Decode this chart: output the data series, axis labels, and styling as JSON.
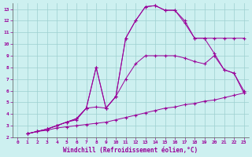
{
  "xlabel": "Windchill (Refroidissement éolien,°C)",
  "bg_color": "#cdf0f0",
  "line_color": "#990099",
  "grid_color": "#9dcfcf",
  "xlim": [
    -0.5,
    23.5
  ],
  "ylim": [
    2,
    13.5
  ],
  "xticks": [
    0,
    1,
    2,
    3,
    4,
    5,
    6,
    7,
    8,
    9,
    10,
    11,
    12,
    13,
    14,
    15,
    16,
    17,
    18,
    19,
    20,
    21,
    22,
    23
  ],
  "yticks": [
    2,
    3,
    4,
    5,
    6,
    7,
    8,
    9,
    10,
    11,
    12,
    13
  ],
  "c1x": [
    1,
    2,
    3,
    4,
    5,
    6,
    7,
    8,
    9,
    10,
    11,
    12,
    13,
    14,
    15,
    16,
    17,
    18,
    19,
    20,
    21,
    22,
    23
  ],
  "c1y": [
    2.3,
    2.5,
    2.6,
    2.8,
    2.9,
    3.0,
    3.1,
    3.2,
    3.3,
    3.5,
    3.7,
    3.9,
    4.1,
    4.3,
    4.5,
    4.6,
    4.8,
    4.9,
    5.1,
    5.2,
    5.4,
    5.6,
    5.8
  ],
  "c2x": [
    1,
    2,
    3,
    4,
    5,
    6,
    7,
    8,
    9,
    10,
    11,
    12,
    13,
    14,
    15,
    16,
    17,
    18,
    19,
    20,
    21,
    22,
    23
  ],
  "c2y": [
    2.3,
    2.5,
    2.7,
    3.0,
    3.3,
    3.5,
    4.5,
    4.6,
    4.5,
    5.5,
    7.0,
    8.3,
    9.0,
    9.0,
    9.0,
    9.0,
    8.8,
    8.5,
    8.3,
    9.0,
    7.8,
    7.5,
    5.8
  ],
  "c3x": [
    1,
    2,
    3,
    4,
    5,
    6,
    7,
    8,
    9,
    10,
    11,
    12,
    13,
    14,
    15,
    16,
    17,
    18,
    19,
    20,
    21,
    22,
    23
  ],
  "c3y": [
    2.3,
    2.5,
    2.7,
    3.0,
    3.3,
    3.6,
    4.5,
    8.0,
    4.5,
    5.5,
    10.5,
    12.0,
    13.2,
    13.3,
    12.9,
    12.9,
    12.0,
    10.5,
    10.5,
    10.5,
    10.5,
    10.5,
    10.5
  ],
  "c4x": [
    1,
    2,
    3,
    4,
    5,
    6,
    7,
    8,
    9,
    10,
    11,
    12,
    13,
    14,
    15,
    16,
    17,
    18,
    19,
    20,
    21,
    22,
    23
  ],
  "c4y": [
    2.3,
    2.5,
    2.7,
    3.0,
    3.3,
    3.6,
    4.5,
    8.0,
    4.5,
    5.5,
    10.5,
    12.0,
    13.2,
    13.3,
    12.9,
    12.9,
    11.8,
    10.5,
    10.5,
    9.2,
    7.8,
    7.5,
    6.0
  ]
}
